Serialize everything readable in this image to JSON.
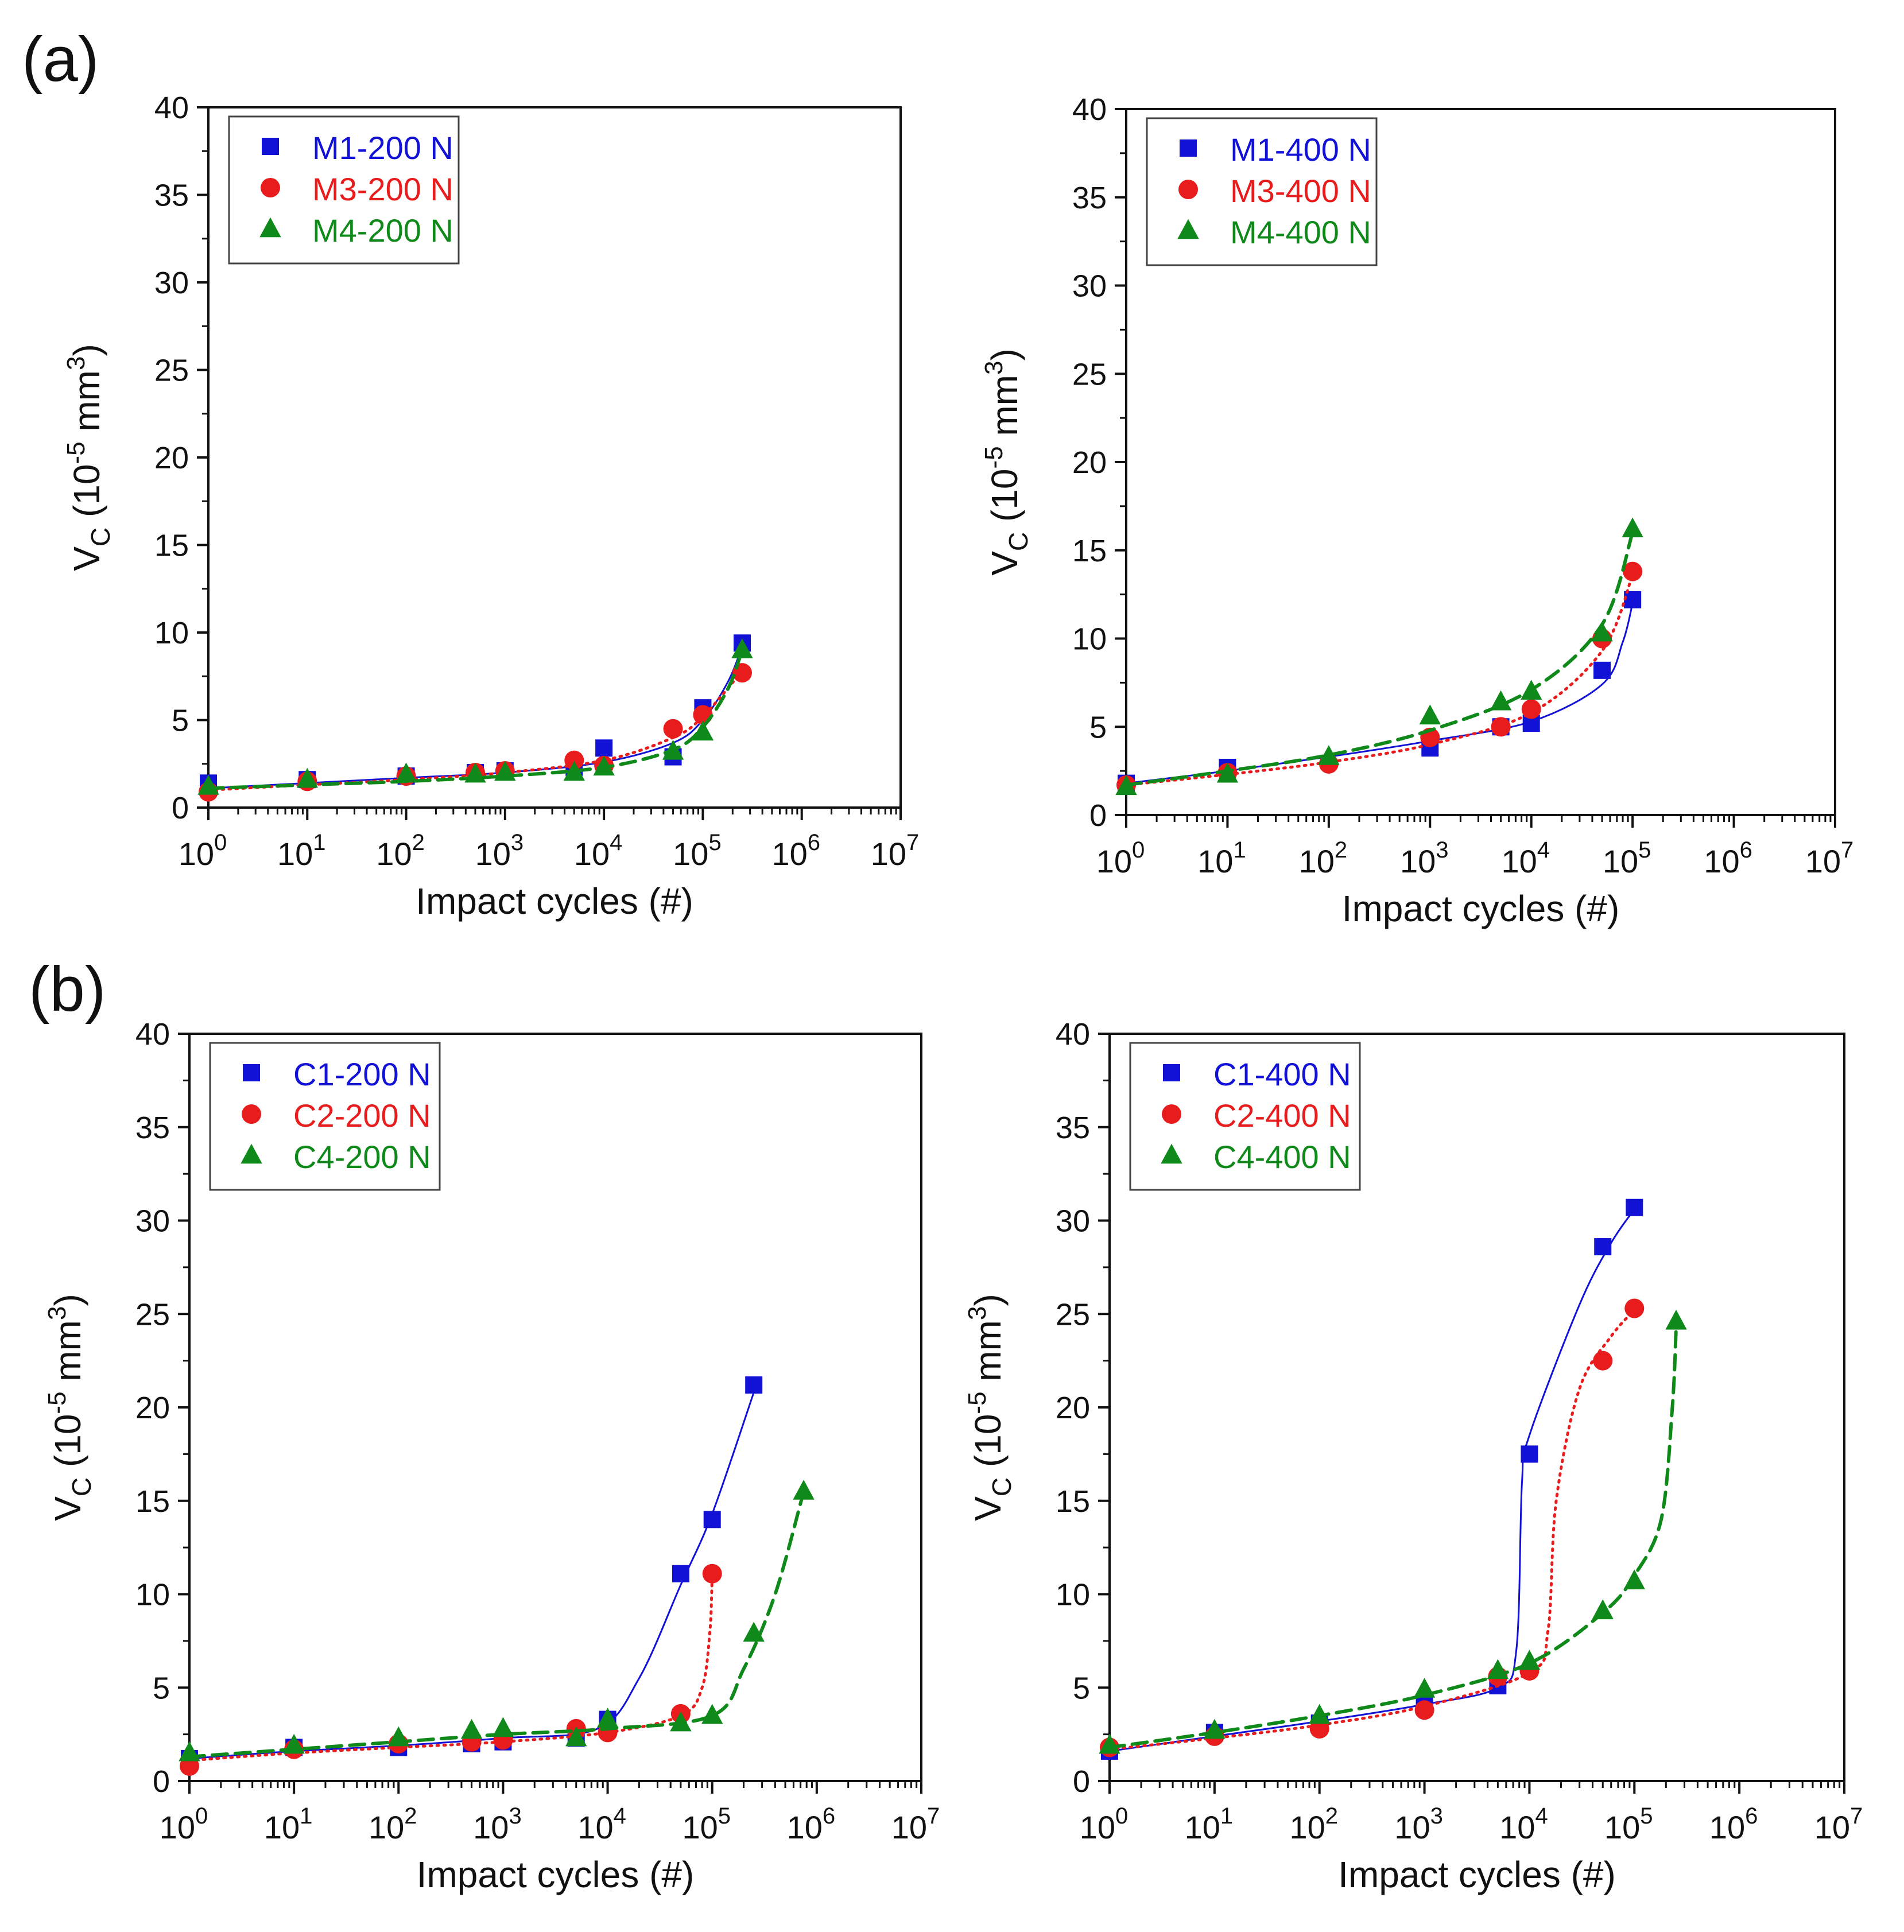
{
  "figure": {
    "panel_labels": [
      "(a)",
      "(b)"
    ]
  },
  "styles": {
    "blue": "#1212d6",
    "red": "#e81c1c",
    "green": "#0f8a1a",
    "axis": "#111111"
  },
  "chart_data": [
    {
      "panel": "(a)",
      "type": "scatter",
      "xlabel": "Impact cycles (#)",
      "ylabel": "V",
      "ylabel_sub": "C",
      "ylabel_units": " (10",
      "ylabel_exp1": "-5",
      "ylabel_mid": " mm",
      "ylabel_exp2": "3",
      "ylabel_close": ")",
      "x_scale": "log",
      "xlim_exp": [
        0,
        7
      ],
      "x_tick_base": "10",
      "x_tick_exponents": [
        "0",
        "1",
        "2",
        "3",
        "4",
        "5",
        "6",
        "7"
      ],
      "ylim": [
        0,
        40
      ],
      "y_ticks": [
        "0",
        "5",
        "10",
        "15",
        "20",
        "25",
        "30",
        "35",
        "40"
      ],
      "legend_position": "top-left",
      "series": [
        {
          "name": "M1-200 N",
          "marker": "square",
          "color": "#1212d6",
          "line": "solid",
          "x": [
            1,
            10,
            100,
            500,
            1000,
            5000,
            10000,
            50000,
            100000,
            250000
          ],
          "y": [
            1.4,
            1.6,
            1.8,
            2.0,
            2.1,
            2.3,
            3.4,
            2.9,
            5.7,
            9.4
          ],
          "fit": [
            [
              1,
              1.1
            ],
            [
              10,
              1.4
            ],
            [
              100,
              1.7
            ],
            [
              1000,
              2.0
            ],
            [
              10000,
              2.6
            ],
            [
              50000,
              3.7
            ],
            [
              100000,
              5.0
            ],
            [
              180000,
              7.2
            ],
            [
              250000,
              9.2
            ]
          ]
        },
        {
          "name": "M3-200 N",
          "marker": "circle",
          "color": "#e81c1c",
          "line": "dotted",
          "x": [
            1,
            10,
            100,
            500,
            1000,
            5000,
            10000,
            50000,
            100000,
            250000
          ],
          "y": [
            0.9,
            1.5,
            1.8,
            2.0,
            2.1,
            2.7,
            2.4,
            4.5,
            5.3,
            7.7
          ],
          "fit": [
            [
              1,
              1.0
            ],
            [
              10,
              1.3
            ],
            [
              100,
              1.6
            ],
            [
              1000,
              2.0
            ],
            [
              10000,
              2.7
            ],
            [
              50000,
              4.0
            ],
            [
              100000,
              5.2
            ],
            [
              250000,
              7.8
            ]
          ]
        },
        {
          "name": "M4-200 N",
          "marker": "triangle",
          "color": "#0f8a1a",
          "line": "dashed",
          "x": [
            1,
            10,
            100,
            500,
            1000,
            5000,
            10000,
            50000,
            100000,
            250000
          ],
          "y": [
            1.2,
            1.6,
            1.9,
            1.9,
            2.0,
            2.0,
            2.3,
            3.2,
            4.3,
            9.0
          ],
          "fit": [
            [
              1,
              1.1
            ],
            [
              10,
              1.3
            ],
            [
              100,
              1.5
            ],
            [
              1000,
              1.8
            ],
            [
              10000,
              2.3
            ],
            [
              50000,
              3.3
            ],
            [
              100000,
              4.6
            ],
            [
              180000,
              6.8
            ],
            [
              250000,
              9.0
            ]
          ]
        }
      ]
    },
    {
      "panel": "(a)",
      "type": "scatter",
      "xlabel": "Impact cycles (#)",
      "ylabel": "V",
      "ylabel_sub": "C",
      "ylabel_units": " (10",
      "ylabel_exp1": "-5",
      "ylabel_mid": " mm",
      "ylabel_exp2": "3",
      "ylabel_close": ")",
      "x_scale": "log",
      "xlim_exp": [
        0,
        7
      ],
      "x_tick_base": "10",
      "x_tick_exponents": [
        "0",
        "1",
        "2",
        "3",
        "4",
        "5",
        "6",
        "7"
      ],
      "ylim": [
        0,
        40
      ],
      "y_ticks": [
        "0",
        "5",
        "10",
        "15",
        "20",
        "25",
        "30",
        "35",
        "40"
      ],
      "legend_position": "top-left",
      "series": [
        {
          "name": "M1-400 N",
          "marker": "square",
          "color": "#1212d6",
          "line": "solid",
          "x": [
            1,
            10,
            1000,
            5000,
            10000,
            50000,
            100000
          ],
          "y": [
            1.8,
            2.7,
            3.8,
            5.0,
            5.2,
            8.2,
            12.2
          ],
          "fit": [
            [
              1,
              1.8
            ],
            [
              10,
              2.5
            ],
            [
              100,
              3.3
            ],
            [
              1000,
              4.2
            ],
            [
              10000,
              5.3
            ],
            [
              50000,
              7.4
            ],
            [
              80000,
              9.8
            ],
            [
              100000,
              12.0
            ]
          ]
        },
        {
          "name": "M3-400 N",
          "marker": "circle",
          "color": "#e81c1c",
          "line": "dotted",
          "x": [
            1,
            10,
            100,
            1000,
            5000,
            10000,
            50000,
            100000
          ],
          "y": [
            1.7,
            2.4,
            2.9,
            4.4,
            5.0,
            6.0,
            10.0,
            13.8
          ],
          "fit": [
            [
              1,
              1.7
            ],
            [
              10,
              2.3
            ],
            [
              100,
              3.0
            ],
            [
              1000,
              4.0
            ],
            [
              10000,
              5.8
            ],
            [
              50000,
              9.3
            ],
            [
              100000,
              13.6
            ]
          ]
        },
        {
          "name": "M4-400 N",
          "marker": "triangle",
          "color": "#0f8a1a",
          "line": "dashed",
          "x": [
            1,
            10,
            100,
            1000,
            5000,
            10000,
            50000,
            100000
          ],
          "y": [
            1.6,
            2.3,
            3.3,
            5.6,
            6.4,
            7.0,
            10.3,
            16.2
          ],
          "fit": [
            [
              1,
              1.7
            ],
            [
              10,
              2.5
            ],
            [
              100,
              3.4
            ],
            [
              1000,
              4.8
            ],
            [
              10000,
              7.1
            ],
            [
              50000,
              10.8
            ],
            [
              100000,
              16.0
            ]
          ]
        }
      ]
    },
    {
      "panel": "(b)",
      "type": "scatter",
      "xlabel": "Impact cycles (#)",
      "ylabel": "V",
      "ylabel_sub": "C",
      "ylabel_units": " (10",
      "ylabel_exp1": "-5",
      "ylabel_mid": " mm",
      "ylabel_exp2": "3",
      "ylabel_close": ")",
      "x_scale": "log",
      "xlim_exp": [
        0,
        7
      ],
      "x_tick_base": "10",
      "x_tick_exponents": [
        "0",
        "1",
        "2",
        "3",
        "4",
        "5",
        "6",
        "7"
      ],
      "ylim": [
        0,
        40
      ],
      "y_ticks": [
        "0",
        "5",
        "10",
        "15",
        "20",
        "25",
        "30",
        "35",
        "40"
      ],
      "legend_position": "top-left",
      "series": [
        {
          "name": "C1-200 N",
          "marker": "square",
          "color": "#1212d6",
          "line": "solid",
          "x": [
            1,
            10,
            100,
            500,
            1000,
            5000,
            10000,
            50000,
            100000,
            250000
          ],
          "y": [
            1.2,
            1.8,
            1.8,
            2.0,
            2.1,
            2.3,
            3.3,
            11.1,
            14.0,
            21.2
          ],
          "fit": [
            [
              1,
              1.2
            ],
            [
              10,
              1.6
            ],
            [
              100,
              1.9
            ],
            [
              1000,
              2.3
            ],
            [
              8000,
              2.8
            ],
            [
              20000,
              5.5
            ],
            [
              50000,
              10.5
            ],
            [
              100000,
              14.3
            ],
            [
              250000,
              20.8
            ]
          ]
        },
        {
          "name": "C2-200 N",
          "marker": "circle",
          "color": "#e81c1c",
          "line": "dotted",
          "x": [
            1,
            10,
            100,
            500,
            1000,
            5000,
            10000,
            50000,
            100000
          ],
          "y": [
            0.8,
            1.7,
            2.0,
            2.1,
            2.2,
            2.8,
            2.6,
            3.6,
            11.1
          ],
          "fit": [
            [
              1,
              1.1
            ],
            [
              10,
              1.5
            ],
            [
              100,
              1.8
            ],
            [
              1000,
              2.1
            ],
            [
              10000,
              2.6
            ],
            [
              50000,
              3.5
            ],
            [
              80000,
              5.0
            ],
            [
              95000,
              8.0
            ],
            [
              100000,
              11.0
            ]
          ]
        },
        {
          "name": "C4-200 N",
          "marker": "triangle",
          "color": "#0f8a1a",
          "line": "dashed",
          "x": [
            1,
            10,
            100,
            500,
            1000,
            5000,
            10000,
            50000,
            100000,
            250000,
            750000
          ],
          "y": [
            1.5,
            1.9,
            2.3,
            2.7,
            2.8,
            2.3,
            3.3,
            3.1,
            3.5,
            7.9,
            15.5
          ],
          "fit": [
            [
              1,
              1.3
            ],
            [
              10,
              1.7
            ],
            [
              100,
              2.1
            ],
            [
              1000,
              2.5
            ],
            [
              10000,
              2.8
            ],
            [
              100000,
              3.5
            ],
            [
              200000,
              6.0
            ],
            [
              400000,
              10.0
            ],
            [
              750000,
              15.5
            ]
          ]
        }
      ]
    },
    {
      "panel": "(b)",
      "type": "scatter",
      "xlabel": "Impact cycles (#)",
      "ylabel": "V",
      "ylabel_sub": "C",
      "ylabel_units": " (10",
      "ylabel_exp1": "-5",
      "ylabel_mid": " mm",
      "ylabel_exp2": "3",
      "ylabel_close": ")",
      "x_scale": "log",
      "xlim_exp": [
        0,
        7
      ],
      "x_tick_base": "10",
      "x_tick_exponents": [
        "0",
        "1",
        "2",
        "3",
        "4",
        "5",
        "6",
        "7"
      ],
      "ylim": [
        0,
        40
      ],
      "y_ticks": [
        "0",
        "5",
        "10",
        "15",
        "20",
        "25",
        "30",
        "35",
        "40"
      ],
      "legend_position": "top-left",
      "series": [
        {
          "name": "C1-400 N",
          "marker": "square",
          "color": "#1212d6",
          "line": "solid",
          "x": [
            1,
            10,
            100,
            1000,
            5000,
            10000,
            50000,
            100000
          ],
          "y": [
            1.6,
            2.6,
            3.1,
            4.2,
            5.1,
            17.5,
            28.6,
            30.7
          ],
          "fit": [
            [
              1,
              1.6
            ],
            [
              10,
              2.4
            ],
            [
              100,
              3.2
            ],
            [
              1000,
              4.1
            ],
            [
              5000,
              5.0
            ],
            [
              7500,
              7.0
            ],
            [
              8500,
              16.0
            ],
            [
              10000,
              18.5
            ],
            [
              30000,
              25.5
            ],
            [
              60000,
              28.8
            ],
            [
              100000,
              30.6
            ]
          ]
        },
        {
          "name": "C2-400 N",
          "marker": "circle",
          "color": "#e81c1c",
          "line": "dotted",
          "x": [
            1,
            10,
            100,
            1000,
            5000,
            10000,
            50000,
            100000
          ],
          "y": [
            1.8,
            2.4,
            2.8,
            3.8,
            5.6,
            5.9,
            22.5,
            25.3
          ],
          "fit": [
            [
              1,
              1.7
            ],
            [
              10,
              2.3
            ],
            [
              100,
              3.0
            ],
            [
              1000,
              4.0
            ],
            [
              10000,
              5.8
            ],
            [
              15000,
              8.0
            ],
            [
              18000,
              15.0
            ],
            [
              30000,
              21.0
            ],
            [
              60000,
              23.8
            ],
            [
              100000,
              25.2
            ]
          ]
        },
        {
          "name": "C4-400 N",
          "marker": "triangle",
          "color": "#0f8a1a",
          "line": "dashed",
          "x": [
            1,
            10,
            100,
            1000,
            5000,
            10000,
            50000,
            100000,
            250000
          ],
          "y": [
            1.9,
            2.7,
            3.5,
            4.9,
            5.9,
            6.4,
            9.1,
            10.7,
            24.6
          ],
          "fit": [
            [
              1,
              1.8
            ],
            [
              10,
              2.6
            ],
            [
              100,
              3.5
            ],
            [
              1000,
              4.6
            ],
            [
              10000,
              6.3
            ],
            [
              50000,
              9.0
            ],
            [
              100000,
              11.0
            ],
            [
              180000,
              14.0
            ],
            [
              230000,
              20.0
            ],
            [
              250000,
              24.3
            ]
          ]
        }
      ]
    }
  ]
}
